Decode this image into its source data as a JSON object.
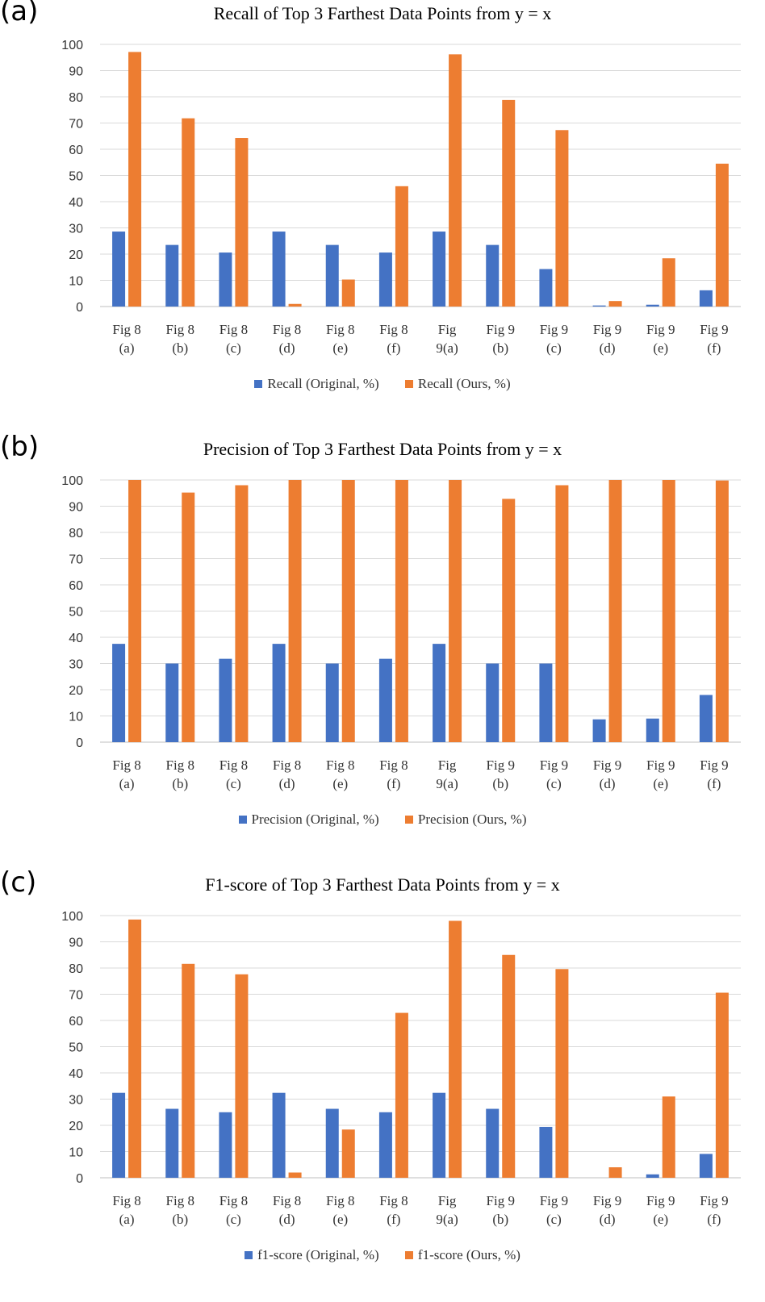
{
  "chart_data": [
    {
      "type": "bar",
      "panel_label": "(a)",
      "title": "Recall of Top 3 Farthest Data Points from y = x",
      "categories": [
        [
          "Fig 8",
          "(a)"
        ],
        [
          "Fig 8",
          "(b)"
        ],
        [
          "Fig 8",
          "(c)"
        ],
        [
          "Fig 8",
          "(d)"
        ],
        [
          "Fig 8",
          "(e)"
        ],
        [
          "Fig 8",
          "(f)"
        ],
        [
          "Fig",
          "9(a)"
        ],
        [
          "Fig 9",
          "(b)"
        ],
        [
          "Fig 9",
          "(c)"
        ],
        [
          "Fig 9",
          "(d)"
        ],
        [
          "Fig 9",
          "(e)"
        ],
        [
          "Fig 9",
          "(f)"
        ]
      ],
      "series": [
        {
          "name": "Recall (Original, %)",
          "color": "#4472C4",
          "values": [
            28.6,
            23.5,
            20.6,
            28.6,
            23.5,
            20.6,
            28.6,
            23.5,
            14.3,
            0.4,
            0.7,
            6.2
          ]
        },
        {
          "name": "Recall (Ours, %)",
          "color": "#ED7D31",
          "values": [
            97.1,
            71.8,
            64.3,
            1.0,
            10.3,
            45.9,
            96.2,
            78.8,
            67.3,
            2.1,
            18.4,
            54.5
          ]
        }
      ],
      "yticks": [
        0,
        10,
        20,
        30,
        40,
        50,
        60,
        70,
        80,
        90,
        100
      ],
      "ylim": [
        0,
        100
      ],
      "grid": true,
      "legend": "bottom"
    },
    {
      "type": "bar",
      "panel_label": "(b)",
      "title": "Precision of Top 3 Farthest Data Points from y = x",
      "categories": [
        [
          "Fig 8",
          "(a)"
        ],
        [
          "Fig 8",
          "(b)"
        ],
        [
          "Fig 8",
          "(c)"
        ],
        [
          "Fig 8",
          "(d)"
        ],
        [
          "Fig 8",
          "(e)"
        ],
        [
          "Fig 8",
          "(f)"
        ],
        [
          "Fig",
          "9(a)"
        ],
        [
          "Fig 9",
          "(b)"
        ],
        [
          "Fig 9",
          "(c)"
        ],
        [
          "Fig 9",
          "(d)"
        ],
        [
          "Fig 9",
          "(e)"
        ],
        [
          "Fig 9",
          "(f)"
        ]
      ],
      "series": [
        {
          "name": "Precision (Original, %)",
          "color": "#4472C4",
          "values": [
            37.5,
            30.0,
            31.8,
            37.5,
            30.0,
            31.8,
            37.5,
            30.0,
            30.0,
            8.7,
            9.0,
            18.0
          ]
        },
        {
          "name": "Precision (Ours, %)",
          "color": "#ED7D31",
          "values": [
            100,
            95.2,
            98.0,
            100,
            100,
            100,
            100,
            92.8,
            98.0,
            100,
            100,
            99.8
          ]
        }
      ],
      "yticks": [
        0,
        10,
        20,
        30,
        40,
        50,
        60,
        70,
        80,
        90,
        100
      ],
      "ylim": [
        0,
        100
      ],
      "grid": true,
      "legend": "bottom"
    },
    {
      "type": "bar",
      "panel_label": "(c)",
      "title": "F1-score of Top 3 Farthest Data Points from y = x",
      "categories": [
        [
          "Fig 8",
          "(a)"
        ],
        [
          "Fig 8",
          "(b)"
        ],
        [
          "Fig 8",
          "(c)"
        ],
        [
          "Fig 8",
          "(d)"
        ],
        [
          "Fig 8",
          "(e)"
        ],
        [
          "Fig 8",
          "(f)"
        ],
        [
          "Fig",
          "9(a)"
        ],
        [
          "Fig 9",
          "(b)"
        ],
        [
          "Fig 9",
          "(c)"
        ],
        [
          "Fig 9",
          "(d)"
        ],
        [
          "Fig 9",
          "(e)"
        ],
        [
          "Fig 9",
          "(f)"
        ]
      ],
      "series": [
        {
          "name": "f1-score (Original, %)",
          "color": "#4472C4",
          "values": [
            32.4,
            26.3,
            25.0,
            32.4,
            26.3,
            25.0,
            32.4,
            26.3,
            19.4,
            0,
            1.3,
            9.1
          ]
        },
        {
          "name": "f1-score (Ours, %)",
          "color": "#ED7D31",
          "values": [
            98.5,
            81.6,
            77.6,
            2.0,
            18.4,
            62.9,
            98.0,
            85.0,
            79.6,
            4.0,
            31.0,
            70.6
          ]
        }
      ],
      "yticks": [
        0,
        10,
        20,
        30,
        40,
        50,
        60,
        70,
        80,
        90,
        100
      ],
      "ylim": [
        0,
        100
      ],
      "grid": true,
      "legend": "bottom"
    }
  ]
}
